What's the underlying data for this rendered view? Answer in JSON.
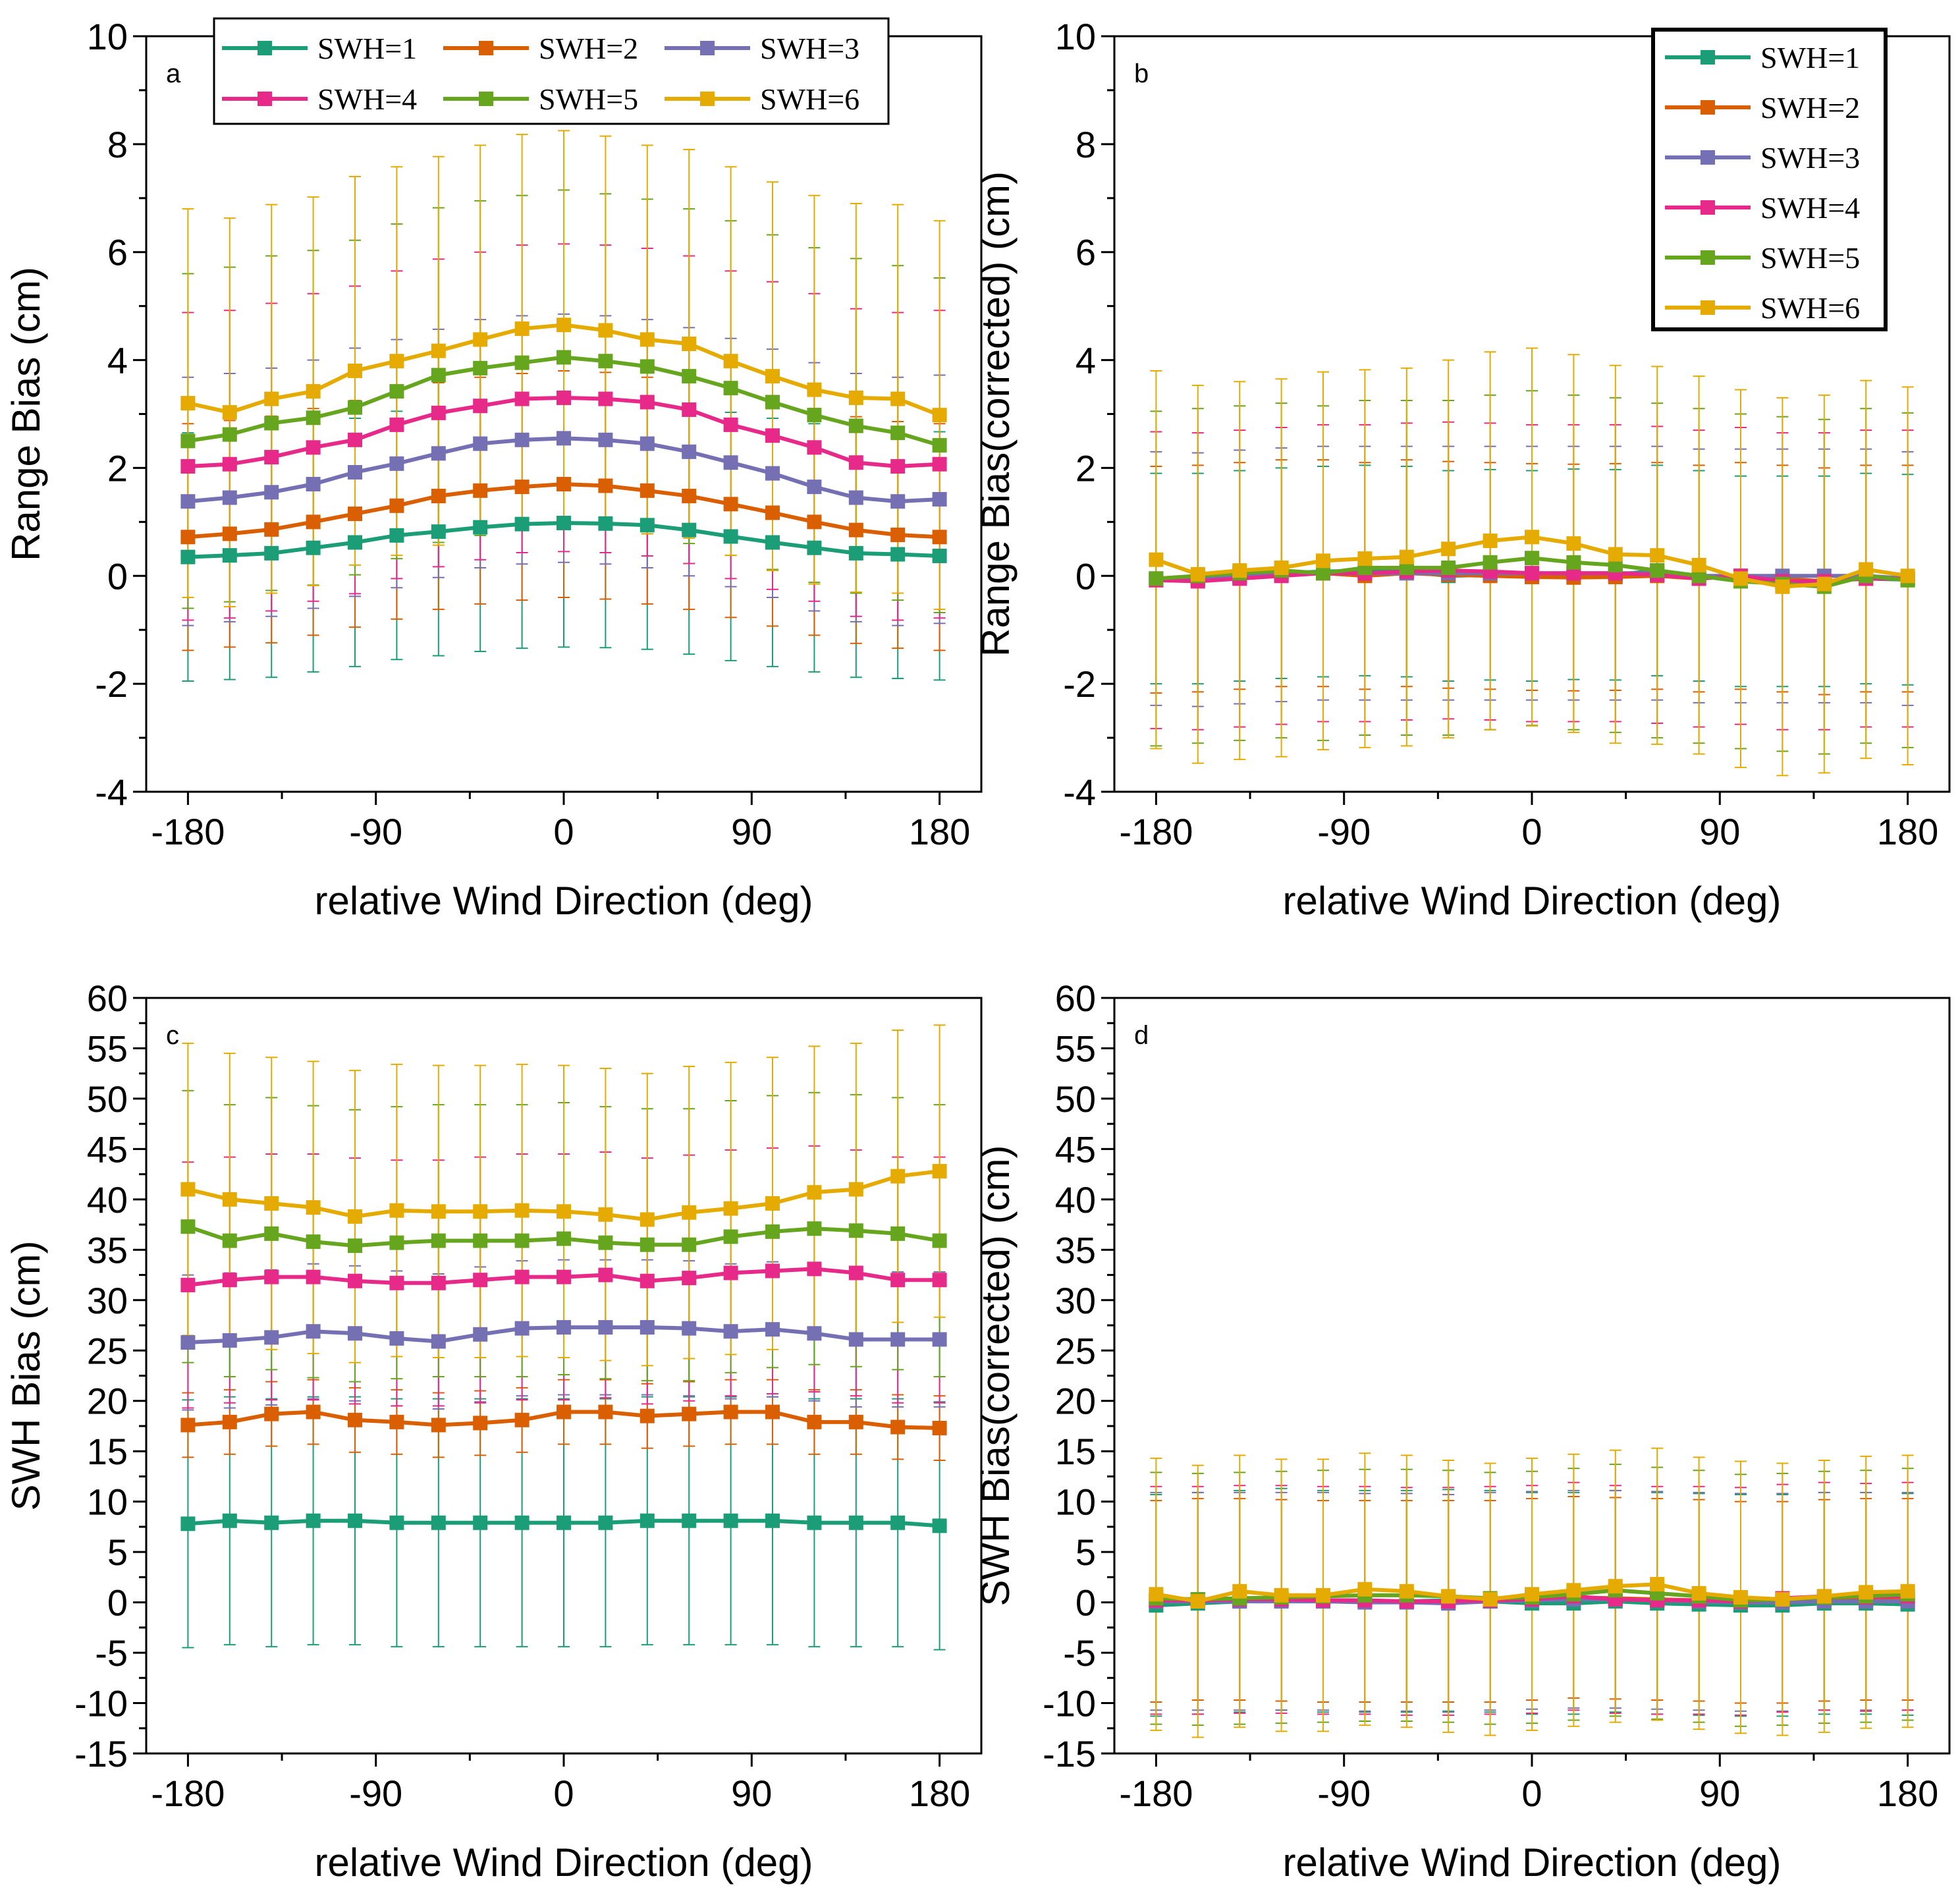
{
  "x_values": [
    -180,
    -160,
    -140,
    -120,
    -100,
    -80,
    -60,
    -40,
    -20,
    0,
    20,
    40,
    60,
    80,
    100,
    120,
    140,
    160,
    180
  ],
  "colors": {
    "SWH=1": "#1b9e77",
    "SWH=2": "#d95f02",
    "SWH=3": "#7570b3",
    "SWH=4": "#e7298a",
    "SWH=5": "#66a61e",
    "SWH=6": "#e6ab02"
  },
  "chart_data": [
    {
      "panel": "a",
      "type": "line",
      "xlabel": "relative Wind Direction (deg)",
      "ylabel": "Range Bias (cm)",
      "xlim": [
        -200,
        200
      ],
      "ylim": [
        -4,
        10
      ],
      "xticks": [
        -180,
        -90,
        0,
        90,
        180
      ],
      "yticks": [
        -4,
        -2,
        0,
        2,
        4,
        6,
        8,
        10
      ],
      "legend_position": "top-center",
      "legend_columns": 3,
      "series": [
        {
          "name": "SWH=1",
          "values": [
            0.35,
            0.38,
            0.42,
            0.52,
            0.62,
            0.75,
            0.82,
            0.9,
            0.96,
            0.98,
            0.97,
            0.94,
            0.85,
            0.73,
            0.62,
            0.52,
            0.42,
            0.4,
            0.37
          ],
          "error": 2.3
        },
        {
          "name": "SWH=2",
          "values": [
            0.72,
            0.78,
            0.86,
            1.0,
            1.15,
            1.3,
            1.48,
            1.58,
            1.65,
            1.7,
            1.67,
            1.58,
            1.48,
            1.33,
            1.17,
            1.0,
            0.85,
            0.76,
            0.72
          ],
          "error": 2.1
        },
        {
          "name": "SWH=3",
          "values": [
            1.38,
            1.45,
            1.55,
            1.7,
            1.92,
            2.08,
            2.27,
            2.45,
            2.52,
            2.55,
            2.52,
            2.45,
            2.3,
            2.1,
            1.9,
            1.65,
            1.45,
            1.38,
            1.42
          ],
          "error": 2.3
        },
        {
          "name": "SWH=4",
          "values": [
            2.03,
            2.07,
            2.2,
            2.38,
            2.52,
            2.8,
            3.02,
            3.15,
            3.28,
            3.3,
            3.28,
            3.22,
            3.08,
            2.8,
            2.6,
            2.38,
            2.1,
            2.03,
            2.07
          ],
          "error": 2.85
        },
        {
          "name": "SWH=5",
          "values": [
            2.5,
            2.62,
            2.83,
            2.93,
            3.12,
            3.42,
            3.72,
            3.85,
            3.95,
            4.05,
            3.98,
            3.88,
            3.7,
            3.48,
            3.22,
            2.98,
            2.78,
            2.65,
            2.42
          ],
          "error": 3.1
        },
        {
          "name": "SWH=6",
          "values": [
            3.2,
            3.03,
            3.28,
            3.42,
            3.8,
            3.98,
            4.17,
            4.38,
            4.58,
            4.65,
            4.55,
            4.38,
            4.3,
            3.98,
            3.7,
            3.45,
            3.3,
            3.28,
            2.98
          ],
          "error": 3.6
        }
      ]
    },
    {
      "panel": "b",
      "type": "line",
      "xlabel": "relative Wind Direction (deg)",
      "ylabel": "Range Bias(corrected) (cm)",
      "xlim": [
        -200,
        200
      ],
      "ylim": [
        -4,
        10
      ],
      "xticks": [
        -180,
        -90,
        0,
        90,
        180
      ],
      "yticks": [
        -4,
        -2,
        0,
        2,
        4,
        6,
        8,
        10
      ],
      "legend_position": "top-right",
      "legend_columns": 1,
      "series": [
        {
          "name": "SWH=1",
          "values": [
            -0.05,
            -0.05,
            0.0,
            0.05,
            0.08,
            0.1,
            0.08,
            0.0,
            0.02,
            0.0,
            0.03,
            0.02,
            0.1,
            0.0,
            -0.1,
            -0.1,
            -0.1,
            -0.05,
            -0.07
          ],
          "error": 1.95
        },
        {
          "name": "SWH=2",
          "values": [
            -0.07,
            -0.05,
            0.0,
            0.05,
            0.05,
            0.0,
            0.05,
            0.02,
            0.0,
            -0.02,
            -0.03,
            -0.02,
            0.0,
            -0.05,
            0.0,
            -0.05,
            -0.1,
            -0.05,
            -0.05
          ],
          "error": 2.1
        },
        {
          "name": "SWH=3",
          "values": [
            -0.05,
            -0.07,
            -0.02,
            0.02,
            0.05,
            0.05,
            0.05,
            0.05,
            0.05,
            0.05,
            0.05,
            0.05,
            0.05,
            0.0,
            0.0,
            0.0,
            0.0,
            0.0,
            -0.05
          ],
          "error": 2.35
        },
        {
          "name": "SWH=4",
          "values": [
            -0.08,
            -0.1,
            -0.05,
            0.0,
            0.05,
            0.05,
            0.08,
            0.1,
            0.08,
            0.05,
            0.05,
            0.05,
            0.02,
            -0.05,
            0.0,
            -0.1,
            -0.1,
            -0.05,
            -0.05
          ],
          "error": 2.75
        },
        {
          "name": "SWH=5",
          "values": [
            -0.05,
            0.0,
            0.05,
            0.1,
            0.05,
            0.15,
            0.15,
            0.15,
            0.25,
            0.33,
            0.25,
            0.2,
            0.1,
            0.0,
            -0.1,
            -0.15,
            -0.2,
            0.0,
            -0.08
          ],
          "error": 3.1
        },
        {
          "name": "SWH=6",
          "values": [
            0.3,
            0.03,
            0.1,
            0.15,
            0.28,
            0.32,
            0.35,
            0.5,
            0.65,
            0.72,
            0.6,
            0.4,
            0.38,
            0.2,
            -0.05,
            -0.2,
            -0.15,
            0.12,
            0.0
          ],
          "error": 3.5
        }
      ]
    },
    {
      "panel": "c",
      "type": "line",
      "xlabel": "relative Wind Direction (deg)",
      "ylabel": "SWH Bias (cm)",
      "xlim": [
        -200,
        200
      ],
      "ylim": [
        -15,
        60
      ],
      "xticks": [
        -180,
        -90,
        0,
        90,
        180
      ],
      "yticks": [
        -15,
        -10,
        -5,
        0,
        5,
        10,
        15,
        20,
        25,
        30,
        35,
        40,
        45,
        50,
        55,
        60
      ],
      "series": [
        {
          "name": "SWH=1",
          "values": [
            7.8,
            8.1,
            7.9,
            8.1,
            8.1,
            7.9,
            7.9,
            7.9,
            7.9,
            7.9,
            7.9,
            8.1,
            8.1,
            8.1,
            8.1,
            7.9,
            7.9,
            7.9,
            7.6
          ],
          "error": 12.3
        },
        {
          "name": "SWH=2",
          "values": [
            17.6,
            17.9,
            18.7,
            18.9,
            18.1,
            17.9,
            17.6,
            17.8,
            18.1,
            18.9,
            18.9,
            18.5,
            18.7,
            18.9,
            18.9,
            17.9,
            17.9,
            17.4,
            17.3
          ],
          "error": 3.2
        },
        {
          "name": "SWH=3",
          "values": [
            25.8,
            26.0,
            26.3,
            26.9,
            26.7,
            26.2,
            25.9,
            26.6,
            27.2,
            27.3,
            27.3,
            27.3,
            27.2,
            26.9,
            27.1,
            26.7,
            26.1,
            26.1,
            26.1
          ],
          "error": 6.7
        },
        {
          "name": "SWH=4",
          "values": [
            31.5,
            32.0,
            32.3,
            32.3,
            31.9,
            31.7,
            31.7,
            32.0,
            32.3,
            32.3,
            32.5,
            31.9,
            32.2,
            32.7,
            32.9,
            33.1,
            32.7,
            32.0,
            32.0
          ],
          "error": 12.2
        },
        {
          "name": "SWH=5",
          "values": [
            37.3,
            35.9,
            36.6,
            35.8,
            35.4,
            35.7,
            35.9,
            35.9,
            35.9,
            36.1,
            35.7,
            35.5,
            35.5,
            36.3,
            36.8,
            37.1,
            36.9,
            36.6,
            35.9
          ],
          "error": 13.5
        },
        {
          "name": "SWH=6",
          "values": [
            41.0,
            40.0,
            39.6,
            39.2,
            38.3,
            38.9,
            38.8,
            38.8,
            38.9,
            38.8,
            38.5,
            38.0,
            38.7,
            39.1,
            39.6,
            40.7,
            41.0,
            42.3,
            42.8
          ],
          "error": 14.5
        }
      ]
    },
    {
      "panel": "d",
      "type": "line",
      "xlabel": "relative Wind Direction (deg)",
      "ylabel": "SWH Bias(corrected) (cm)",
      "xlim": [
        -200,
        200
      ],
      "ylim": [
        -15,
        60
      ],
      "xticks": [
        -180,
        -90,
        0,
        90,
        180
      ],
      "yticks": [
        -15,
        -10,
        -5,
        0,
        5,
        10,
        15,
        20,
        25,
        30,
        35,
        40,
        45,
        50,
        55,
        60
      ],
      "series": [
        {
          "name": "SWH=1",
          "values": [
            -0.3,
            -0.1,
            0.1,
            0.3,
            0.1,
            0.1,
            0.1,
            0.2,
            0.1,
            -0.1,
            -0.1,
            0.1,
            -0.1,
            -0.2,
            -0.3,
            -0.3,
            -0.1,
            -0.1,
            -0.2
          ],
          "error": 11.0
        },
        {
          "name": "SWH=2",
          "values": [
            0.1,
            0.3,
            0.3,
            0.2,
            0.1,
            0.1,
            0.1,
            0.1,
            0.1,
            0.3,
            0.5,
            0.4,
            0.3,
            0.2,
            0.0,
            0.0,
            0.2,
            0.3,
            0.3
          ],
          "error": 10.0
        },
        {
          "name": "SWH=3",
          "values": [
            0.1,
            0.1,
            0.1,
            0.1,
            0.1,
            0.0,
            0.0,
            -0.1,
            0.1,
            0.2,
            0.3,
            0.3,
            0.2,
            0.1,
            0.0,
            0.0,
            0.1,
            0.1,
            0.1
          ],
          "error": 10.8
        },
        {
          "name": "SWH=4",
          "values": [
            0.2,
            0.2,
            0.3,
            0.3,
            0.2,
            0.2,
            0.1,
            0.1,
            0.2,
            0.3,
            0.6,
            0.3,
            0.2,
            0.2,
            0.1,
            0.4,
            0.6,
            0.5,
            0.6
          ],
          "error": 11.3
        },
        {
          "name": "SWH=5",
          "values": [
            0.4,
            0.3,
            0.4,
            0.5,
            0.6,
            0.7,
            0.7,
            0.6,
            0.4,
            0.5,
            0.8,
            1.2,
            0.9,
            0.6,
            0.2,
            0.3,
            0.5,
            0.6,
            0.8
          ],
          "error": 12.5
        },
        {
          "name": "SWH=6",
          "values": [
            0.8,
            0.1,
            1.1,
            0.7,
            0.7,
            1.3,
            1.1,
            0.6,
            0.3,
            0.8,
            1.2,
            1.6,
            1.8,
            0.9,
            0.5,
            0.3,
            0.6,
            1.0,
            1.1
          ],
          "error": 13.5
        }
      ]
    }
  ]
}
